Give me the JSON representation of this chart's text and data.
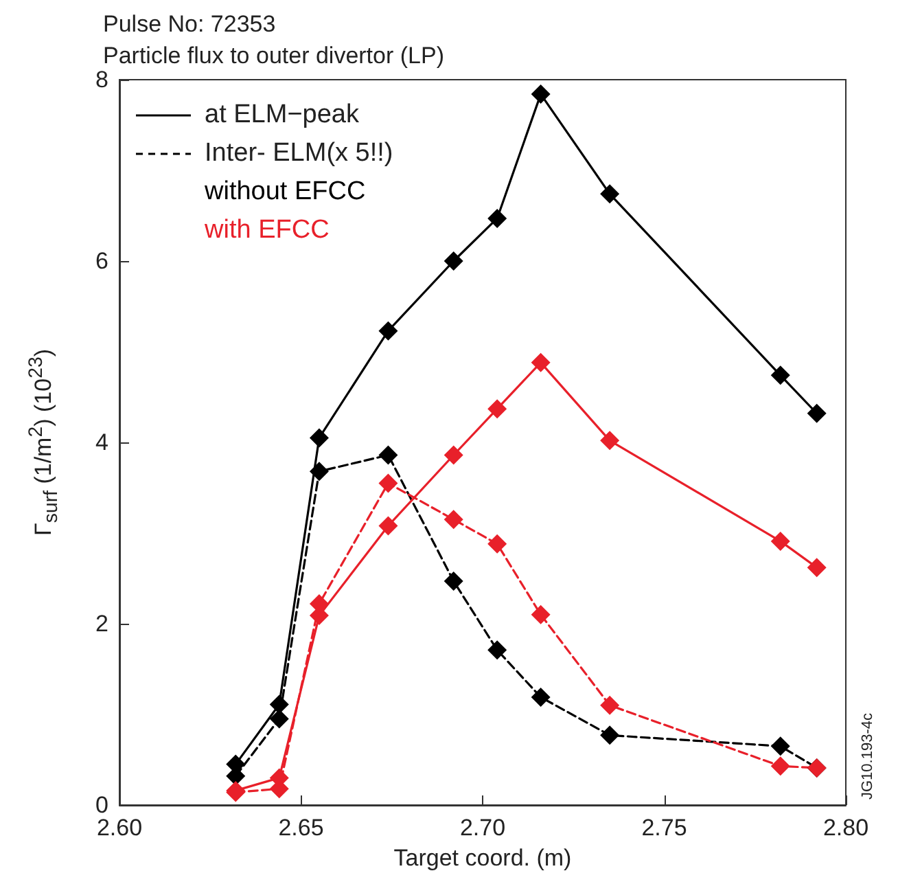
{
  "chart_data": {
    "type": "line",
    "title": "Pulse No: 72353",
    "subtitle": "Particle flux to outer divertor (LP)",
    "xlabel": "Target coord. (m)",
    "ylabel": "Γ$_{surf}$ (1/m$^{2}$) (10$^{23}$)",
    "x": [
      2.632,
      2.644,
      2.655,
      2.674,
      2.692,
      2.704,
      2.716,
      2.735,
      2.782,
      2.792
    ],
    "series": [
      {
        "color": "#000000",
        "line_style": "solid",
        "values": [
          0.45,
          1.11,
          4.05,
          5.23,
          6.0,
          6.47,
          7.84,
          6.74,
          4.74,
          4.32
        ]
      },
      {
        "color": "#000000",
        "line_style": "dashed",
        "values": [
          0.32,
          0.95,
          3.68,
          3.86,
          2.47,
          1.71,
          1.19,
          0.77,
          0.65,
          0.41
        ]
      },
      {
        "color": "#e8202a",
        "line_style": "solid",
        "values": [
          0.16,
          0.3,
          2.09,
          3.08,
          3.86,
          4.37,
          4.88,
          4.02,
          2.91,
          2.62
        ]
      },
      {
        "color": "#e8202a",
        "line_style": "dashed",
        "values": [
          0.14,
          0.18,
          2.22,
          3.55,
          3.15,
          2.88,
          2.1,
          1.1,
          0.43,
          0.41
        ]
      }
    ],
    "annotations": [
      "at ELM−peak",
      "Inter- ELM(x 5!!)",
      "without EFCC",
      "with EFCC",
      "JG10.193-4c"
    ],
    "xlim": [
      2.6,
      2.8
    ],
    "xticks": [
      {
        "value": 2.6,
        "label": "2.60"
      },
      {
        "value": 2.65,
        "label": "2.65"
      },
      {
        "value": 2.7,
        "label": "2.70"
      },
      {
        "value": 2.75,
        "label": "2.75"
      },
      {
        "value": 2.8,
        "label": "2.80"
      }
    ],
    "ylim": [
      0,
      8
    ],
    "yticks": [
      0,
      2,
      4,
      6,
      8
    ],
    "marker": "diamond",
    "grid": false
  }
}
